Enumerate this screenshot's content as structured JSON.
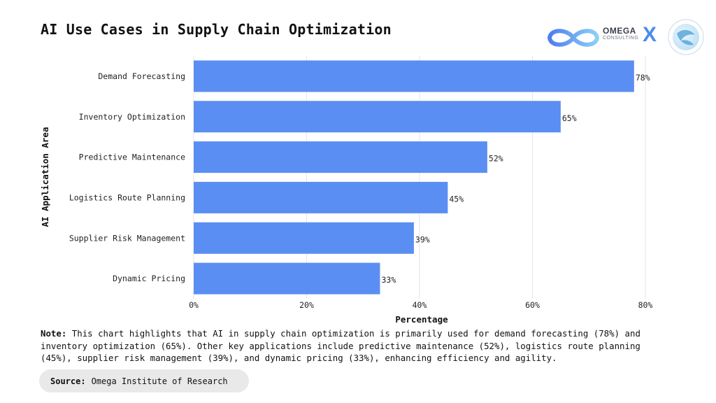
{
  "page": {
    "title": "AI Use Cases in Supply Chain Optimization",
    "note_label": "Note:",
    "note_text": "This chart highlights that AI in supply chain optimization is primarily used for demand forecasting (78%) and inventory optimization (65%). Other key applications include predictive maintenance (52%), logistics route planning (45%), supplier risk management (39%), and dynamic pricing (33%), enhancing efficiency and agility.",
    "source_label": "Source:",
    "source_text": "Omega Institute of Research",
    "logo": {
      "name": "OMEGA",
      "sub": "CONSULTING",
      "x": "X"
    }
  },
  "colors": {
    "bar": "#5b8ef2",
    "grid": "#e6e6e6",
    "accent": "#4a8cf0"
  },
  "chart_data": {
    "type": "bar",
    "orientation": "horizontal",
    "categories": [
      "Demand Forecasting",
      "Inventory Optimization",
      "Predictive Maintenance",
      "Logistics Route Planning",
      "Supplier Risk Management",
      "Dynamic Pricing"
    ],
    "values": [
      78,
      65,
      52,
      45,
      39,
      33
    ],
    "value_labels": [
      "78%",
      "65%",
      "52%",
      "45%",
      "39%",
      "33%"
    ],
    "xlabel": "Percentage",
    "ylabel": "AI Application Area",
    "xlim": [
      0,
      80
    ],
    "xticks": [
      0,
      20,
      40,
      60,
      80
    ],
    "xtick_labels": [
      "0%",
      "20%",
      "40%",
      "60%",
      "80%"
    ],
    "grid": "vertical"
  }
}
